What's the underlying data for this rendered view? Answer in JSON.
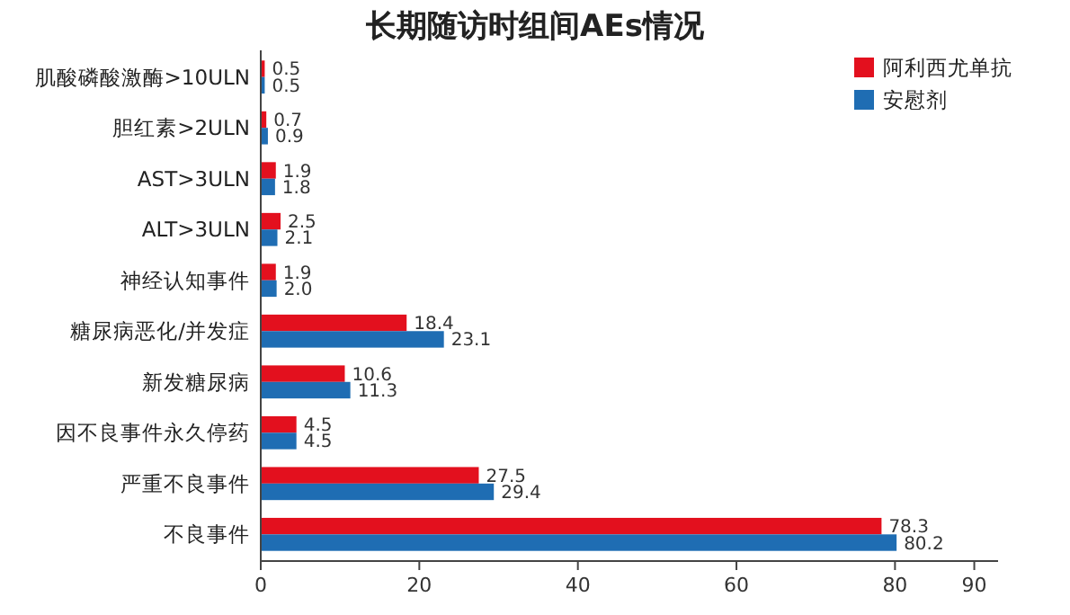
{
  "chart_data": {
    "type": "bar",
    "orientation": "horizontal",
    "title": "长期随访时组间AEs情况",
    "categories": [
      "肌酸磷酸激酶>10ULN",
      "胆红素>2ULN",
      "AST>3ULN",
      "ALT>3ULN",
      "神经认知事件",
      "糖尿病恶化/并发症",
      "新发糖尿病",
      "因不良事件永久停药",
      "严重不良事件",
      "不良事件"
    ],
    "series": [
      {
        "name": "阿利西尤单抗",
        "color": "#e3101e",
        "values": [
          0.5,
          0.7,
          1.9,
          2.5,
          1.9,
          18.4,
          10.6,
          4.5,
          27.5,
          78.3
        ]
      },
      {
        "name": "安慰剂",
        "color": "#1f6db3",
        "values": [
          0.5,
          0.9,
          1.8,
          2.1,
          2.0,
          23.1,
          11.3,
          4.5,
          29.4,
          80.2
        ],
        "value_labels": [
          "0.5",
          "0.9",
          "1.8",
          "2.1",
          "2.0",
          "23.1",
          "11.3",
          "4.5",
          "29.4",
          "80.2"
        ]
      }
    ],
    "xlim": [
      0,
      93
    ],
    "xticks": [
      0,
      20,
      40,
      60,
      80,
      90
    ],
    "data_labels": true,
    "legend": "top right",
    "grid": false
  }
}
